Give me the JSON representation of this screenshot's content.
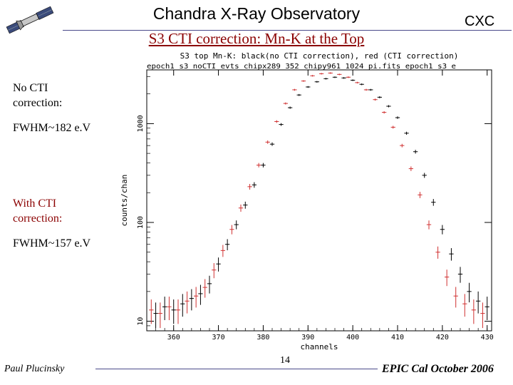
{
  "slide": {
    "title": "Chandra X-Ray Observatory",
    "corner_label": "CXC",
    "subtitle": "S3 CTI correction: Mn-K at the Top",
    "note_no_cti_1": "No CTI",
    "note_no_cti_2": "correction:",
    "note_fwhm_no_cti": "FWHM~182 e.V",
    "note_cti_1": "With CTI",
    "note_cti_2": "correction:",
    "note_fwhm_cti": "FWHM~157 e.V",
    "footer_author": "Paul Plucinsky",
    "page_number": "14",
    "footer_event": "EPIC Cal October 2006",
    "accent_color": "#8b0000",
    "rule_color": "#4a4a8a",
    "logo_icon": "satellite-icon"
  },
  "chart_data": {
    "type": "scatter",
    "title": "S3 top Mn-K: black(no CTI correction), red (CTI correction)",
    "subtitle": "epoch1_s3_noCTI_evts_chipx289_352_chipy961_1024_pi.fits epoch1_s3_e",
    "xlabel": "channels",
    "ylabel": "counts/chan",
    "xlim": [
      354,
      431
    ],
    "ylim": [
      8,
      3500
    ],
    "yscale": "log",
    "x_ticks": [
      360,
      370,
      380,
      390,
      400,
      410,
      420,
      430
    ],
    "y_ticks": [
      10,
      100,
      1000
    ],
    "grid": false,
    "legend": "none",
    "error_bars": true,
    "series": [
      {
        "color": "#000000",
        "x": [
          356,
          358,
          360,
          362,
          364,
          366,
          368,
          370,
          372,
          374,
          376,
          378,
          380,
          382,
          384,
          386,
          388,
          390,
          392,
          394,
          396,
          398,
          400,
          402,
          404,
          406,
          408,
          410,
          412,
          414,
          416,
          418,
          420,
          422,
          424,
          426,
          428,
          430
        ],
        "values": [
          12,
          14,
          13,
          15,
          17,
          19,
          24,
          38,
          60,
          95,
          150,
          240,
          380,
          620,
          980,
          1450,
          1950,
          2350,
          2650,
          2850,
          2950,
          2900,
          2750,
          2500,
          2200,
          1850,
          1500,
          1150,
          800,
          520,
          300,
          160,
          85,
          48,
          30,
          20,
          16,
          14
        ]
      },
      {
        "color": "#d03030",
        "x": [
          355,
          357,
          359,
          361,
          363,
          365,
          367,
          369,
          371,
          373,
          375,
          377,
          379,
          381,
          383,
          385,
          387,
          389,
          391,
          393,
          395,
          397,
          399,
          401,
          403,
          405,
          407,
          409,
          411,
          413,
          415,
          417,
          419,
          421,
          423,
          425,
          427,
          429
        ],
        "values": [
          13,
          12,
          14,
          13,
          16,
          18,
          22,
          33,
          52,
          85,
          140,
          230,
          380,
          650,
          1050,
          1600,
          2200,
          2700,
          3050,
          3200,
          3250,
          3150,
          2950,
          2600,
          2200,
          1750,
          1300,
          920,
          600,
          350,
          190,
          95,
          50,
          28,
          18,
          15,
          13,
          12
        ]
      }
    ]
  }
}
